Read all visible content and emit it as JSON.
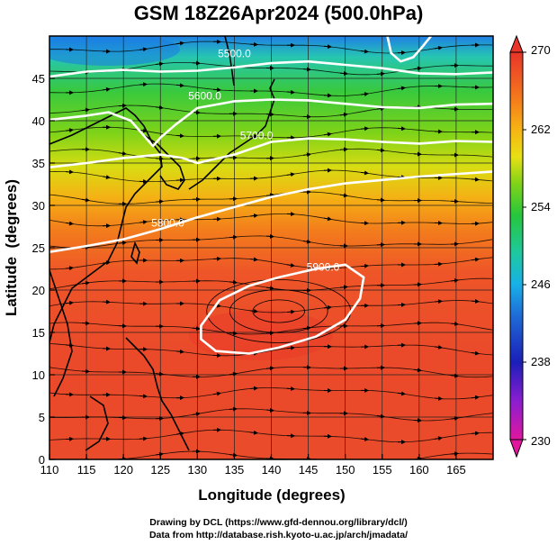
{
  "title": "GSM 18Z26Apr2024 (500.0hPa)",
  "xlabel": "Longitude (degrees)",
  "ylabel": "Latitude  (degrees)",
  "x_ticks": [
    "110",
    "115",
    "120",
    "125",
    "130",
    "135",
    "140",
    "145",
    "150",
    "155",
    "160",
    "165"
  ],
  "y_ticks": [
    "0",
    "5",
    "10",
    "15",
    "20",
    "25",
    "30",
    "35",
    "40",
    "45"
  ],
  "colorbar": {
    "ticks": [
      "230",
      "238",
      "246",
      "254",
      "262",
      "270"
    ],
    "min": 230,
    "max": 270,
    "colors": [
      "#e0179e",
      "#6d1ecb",
      "#1b1fb8",
      "#1f6bd6",
      "#18b0e8",
      "#1ec8a0",
      "#27c63c",
      "#5ccf18",
      "#a8dc12",
      "#f0e016",
      "#f6b414",
      "#f47a1c",
      "#ef4a28",
      "#e8342a"
    ]
  },
  "contour_labels": [
    "5500.0",
    "5600.0",
    "5700.0",
    "5800.0",
    "5900.0"
  ],
  "credits": [
    "Drawing by DCL (https://www.gfd-dennou.org/library/dcl/)",
    "Data from http://database.rish.kyoto-u.ac.jp/arch/jmadata/"
  ],
  "chart_data": {
    "type": "heatmap",
    "title": "GSM 18Z26Apr2024 (500.0hPa)",
    "xlabel": "Longitude (degrees)",
    "ylabel": "Latitude  (degrees)",
    "xlim": [
      110,
      170
    ],
    "ylim": [
      0,
      50
    ],
    "colorbar_range": [
      230,
      270
    ],
    "temperature_by_latitude": [
      {
        "lat": 49,
        "value": 246
      },
      {
        "lat": 45,
        "value": 252
      },
      {
        "lat": 40,
        "value": 256
      },
      {
        "lat": 35,
        "value": 259
      },
      {
        "lat": 30,
        "value": 263
      },
      {
        "lat": 25,
        "value": 265
      },
      {
        "lat": 20,
        "value": 267
      },
      {
        "lat": 10,
        "value": 268
      },
      {
        "lat": 0,
        "value": 268
      }
    ],
    "geopotential_height_contours": [
      {
        "label": "5500.0",
        "path": [
          [
            110,
            45.2
          ],
          [
            115,
            45.8
          ],
          [
            120,
            46
          ],
          [
            125,
            45.8
          ],
          [
            130,
            45.9
          ],
          [
            135,
            46.3
          ],
          [
            140,
            46.8
          ],
          [
            145,
            47
          ],
          [
            150,
            46.6
          ],
          [
            155,
            46.2
          ],
          [
            160,
            45.6
          ],
          [
            165,
            45.5
          ],
          [
            170,
            45.7
          ]
        ]
      },
      {
        "label": "5600.0",
        "path": [
          [
            110,
            40.1
          ],
          [
            115,
            40.6
          ],
          [
            118,
            41
          ],
          [
            121,
            40
          ],
          [
            123,
            38
          ],
          [
            124,
            37
          ],
          [
            125,
            38
          ],
          [
            127,
            39.5
          ],
          [
            130,
            41.5
          ],
          [
            135,
            42.3
          ],
          [
            140,
            42.5
          ],
          [
            145,
            42.4
          ],
          [
            150,
            42
          ],
          [
            155,
            41.6
          ],
          [
            160,
            41.5
          ],
          [
            165,
            41.9
          ],
          [
            170,
            42
          ]
        ]
      },
      {
        "label": "5700.0",
        "path": [
          [
            110,
            34.5
          ],
          [
            115,
            35
          ],
          [
            120,
            35.6
          ],
          [
            125,
            36
          ],
          [
            128,
            35.6
          ],
          [
            130,
            35
          ],
          [
            135,
            36
          ],
          [
            140,
            37.5
          ],
          [
            145,
            37.9
          ],
          [
            150,
            37.8
          ],
          [
            155,
            37.5
          ],
          [
            160,
            37.3
          ],
          [
            165,
            37.6
          ],
          [
            170,
            37.5
          ]
        ]
      },
      {
        "label": "5800.0",
        "path": [
          [
            110,
            24.5
          ],
          [
            115,
            25.2
          ],
          [
            120,
            26
          ],
          [
            125,
            27.2
          ],
          [
            130,
            28.6
          ],
          [
            135,
            29.8
          ],
          [
            140,
            31
          ],
          [
            145,
            31.9
          ],
          [
            150,
            32.6
          ],
          [
            155,
            33
          ],
          [
            160,
            33.4
          ],
          [
            165,
            33.7
          ],
          [
            170,
            34
          ]
        ]
      },
      {
        "label": "5900.0",
        "closed": true,
        "path": [
          [
            130.5,
            15.8
          ],
          [
            133,
            18.8
          ],
          [
            137,
            20.5
          ],
          [
            141,
            21.5
          ],
          [
            146,
            22.5
          ],
          [
            150,
            23
          ],
          [
            152.5,
            21.5
          ],
          [
            152,
            19
          ],
          [
            150,
            16.5
          ],
          [
            146,
            14.5
          ],
          [
            141,
            13.2
          ],
          [
            137,
            12.5
          ],
          [
            132.5,
            12.8
          ],
          [
            130.5,
            14.2
          ]
        ]
      },
      {
        "label": "",
        "path": [
          [
            155.7,
            50
          ],
          [
            156.2,
            48
          ],
          [
            157.5,
            47
          ],
          [
            159.2,
            47.5
          ],
          [
            160.5,
            48.8
          ],
          [
            161.6,
            50
          ]
        ]
      }
    ]
  }
}
